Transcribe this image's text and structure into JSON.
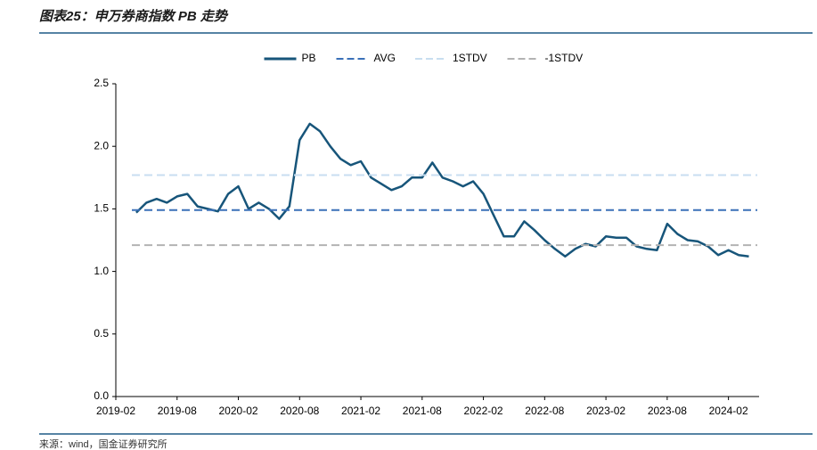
{
  "chart_data": {
    "type": "line",
    "title": "图表25：申万券商指数 PB 走势",
    "source": "来源：wind，国金证券研究所",
    "x": [
      "2019-04",
      "2019-05",
      "2019-06",
      "2019-07",
      "2019-08",
      "2019-09",
      "2019-10",
      "2019-11",
      "2019-12",
      "2020-01",
      "2020-02",
      "2020-03",
      "2020-04",
      "2020-05",
      "2020-06",
      "2020-07",
      "2020-08",
      "2020-09",
      "2020-10",
      "2020-11",
      "2020-12",
      "2021-01",
      "2021-02",
      "2021-03",
      "2021-04",
      "2021-05",
      "2021-06",
      "2021-07",
      "2021-08",
      "2021-09",
      "2021-10",
      "2021-11",
      "2021-12",
      "2022-01",
      "2022-02",
      "2022-03",
      "2022-04",
      "2022-05",
      "2022-06",
      "2022-07",
      "2022-08",
      "2022-09",
      "2022-10",
      "2022-11",
      "2022-12",
      "2023-01",
      "2023-02",
      "2023-03",
      "2023-04",
      "2023-05",
      "2023-06",
      "2023-07",
      "2023-08",
      "2023-09",
      "2023-10",
      "2023-11",
      "2023-12",
      "2024-01",
      "2024-02",
      "2024-03",
      "2024-04"
    ],
    "series": [
      {
        "name": "PB",
        "color": "#17557a",
        "style": "solid",
        "values": [
          1.47,
          1.55,
          1.58,
          1.55,
          1.6,
          1.62,
          1.52,
          1.5,
          1.48,
          1.62,
          1.68,
          1.5,
          1.55,
          1.5,
          1.42,
          1.52,
          2.05,
          2.18,
          2.12,
          2.0,
          1.9,
          1.85,
          1.88,
          1.75,
          1.7,
          1.65,
          1.68,
          1.75,
          1.75,
          1.87,
          1.75,
          1.72,
          1.68,
          1.72,
          1.62,
          1.45,
          1.28,
          1.28,
          1.4,
          1.33,
          1.25,
          1.18,
          1.12,
          1.18,
          1.22,
          1.2,
          1.28,
          1.27,
          1.27,
          1.2,
          1.18,
          1.17,
          1.38,
          1.3,
          1.25,
          1.24,
          1.2,
          1.13,
          1.17,
          1.13,
          1.12
        ]
      },
      {
        "name": "AVG",
        "color": "#3a70b8",
        "style": "dashed",
        "value": 1.49
      },
      {
        "name": "1STDV",
        "color": "#c8def0",
        "style": "dashed",
        "value": 1.77
      },
      {
        "name": "-1STDV",
        "color": "#b3b3b3",
        "style": "dashed",
        "value": 1.21
      }
    ],
    "xlim": [
      "2019-02",
      "2024-05"
    ],
    "xticks": [
      "2019-02",
      "2019-08",
      "2020-02",
      "2020-08",
      "2021-02",
      "2021-08",
      "2022-02",
      "2022-08",
      "2023-02",
      "2023-08",
      "2024-02"
    ],
    "ylim": [
      0,
      2.5
    ],
    "yticks": [
      {
        "value": 0,
        "label": "0.0"
      },
      {
        "value": 0.5,
        "label": "0.5"
      },
      {
        "value": 1,
        "label": "1.0"
      },
      {
        "value": 1.5,
        "label": "1.5"
      },
      {
        "value": 2,
        "label": "2.0"
      },
      {
        "value": 2.5,
        "label": "2.5"
      }
    ],
    "legend": "top"
  }
}
